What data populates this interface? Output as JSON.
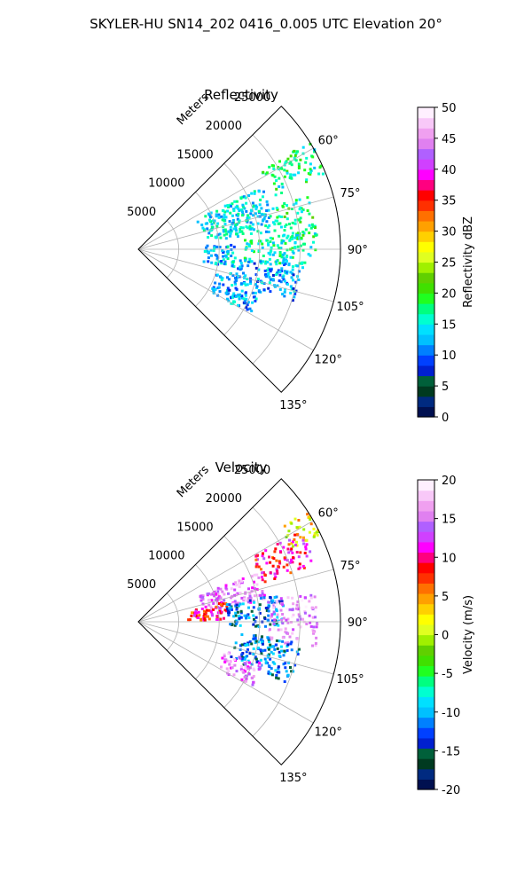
{
  "figure_title": "SKYLER-HU  SN14_202  0416_0.005 UTC Elevation 20°",
  "colors": {
    "reflectivity_colormap": [
      "#001050",
      "#002a80",
      "#003a20",
      "#00603a",
      "#0020d0",
      "#0040ff",
      "#0080ff",
      "#00c0ff",
      "#00e0ff",
      "#00ffd0",
      "#00ff80",
      "#20ff20",
      "#40e000",
      "#60d000",
      "#a0f000",
      "#e0ff20",
      "#ffff00",
      "#ffd000",
      "#ffa000",
      "#ff7000",
      "#ff3000",
      "#ff0000",
      "#ff0080",
      "#ff00ff",
      "#d040ff",
      "#b060ff",
      "#e080f0",
      "#f0a0f0",
      "#f8c8f8",
      "#fff0ff"
    ],
    "velocity_colormap": [
      "#001050",
      "#002a80",
      "#003a20",
      "#00603a",
      "#0020d0",
      "#0040ff",
      "#0080ff",
      "#00c0ff",
      "#00e0ff",
      "#00ffd0",
      "#00ff80",
      "#20ff20",
      "#40e000",
      "#60d000",
      "#a0f000",
      "#e0ff20",
      "#ffff00",
      "#ffd000",
      "#ffa000",
      "#ff7000",
      "#ff3000",
      "#ff0000",
      "#ff0080",
      "#ff00ff",
      "#d040ff",
      "#b060ff",
      "#e080f0",
      "#f0a0f0",
      "#f8c8f8",
      "#fff0ff"
    ]
  },
  "chart_data": [
    {
      "type": "heatmap",
      "projection": "polar-sector",
      "title": "Reflectivity",
      "radial_label": "Meters",
      "radial_ticks": [
        5000,
        10000,
        15000,
        20000,
        25000
      ],
      "radial_range": [
        0,
        25000
      ],
      "angle_ticks_deg": [
        60,
        75,
        90,
        105,
        120,
        135
      ],
      "angle_tick_labels": [
        "60°",
        "75°",
        "90°",
        "105°",
        "120°",
        "135°"
      ],
      "angle_range_deg": [
        45,
        135
      ],
      "grid": true,
      "colorbar": {
        "label": "Reflectivity dBZ",
        "ticks": [
          0,
          5,
          10,
          15,
          20,
          25,
          30,
          35,
          40,
          45,
          50
        ],
        "range": [
          0,
          50
        ]
      },
      "echo_regions": [
        {
          "azimuth_range_deg": [
            57,
            68
          ],
          "range_m": [
            18000,
            25000
          ],
          "value": 17
        },
        {
          "azimuth_range_deg": [
            62,
            82
          ],
          "range_m": [
            8000,
            17000
          ],
          "value": 14
        },
        {
          "azimuth_range_deg": [
            72,
            86
          ],
          "range_m": [
            17000,
            22000
          ],
          "value": 18
        },
        {
          "azimuth_range_deg": [
            84,
            96
          ],
          "range_m": [
            13000,
            22000
          ],
          "value": 16
        },
        {
          "azimuth_range_deg": [
            95,
            108
          ],
          "range_m": [
            12000,
            20000
          ],
          "value": 12
        },
        {
          "azimuth_range_deg": [
            104,
            120
          ],
          "range_m": [
            10000,
            16000
          ],
          "value": 12
        },
        {
          "azimuth_range_deg": [
            86,
            100
          ],
          "range_m": [
            8000,
            12000
          ],
          "value": 13
        }
      ]
    },
    {
      "type": "heatmap",
      "projection": "polar-sector",
      "title": "Velocity",
      "radial_label": "Meters",
      "radial_ticks": [
        5000,
        10000,
        15000,
        20000,
        25000
      ],
      "radial_range": [
        0,
        25000
      ],
      "angle_ticks_deg": [
        60,
        75,
        90,
        105,
        120,
        135
      ],
      "angle_tick_labels": [
        "60°",
        "75°",
        "90°",
        "105°",
        "120°",
        "135°"
      ],
      "angle_range_deg": [
        45,
        135
      ],
      "grid": true,
      "colorbar": {
        "label": "Velocity (m/s)",
        "ticks": [
          -20,
          -15,
          -10,
          -5,
          0,
          5,
          10,
          15,
          20
        ],
        "range": [
          -20,
          20
        ]
      },
      "echo_regions": [
        {
          "azimuth_range_deg": [
            56,
            64
          ],
          "range_m": [
            21000,
            25000
          ],
          "value": 2
        },
        {
          "azimuth_range_deg": [
            60,
            72
          ],
          "range_m": [
            16000,
            23000
          ],
          "value": 10
        },
        {
          "azimuth_range_deg": [
            66,
            80
          ],
          "range_m": [
            8000,
            16000
          ],
          "value": 15
        },
        {
          "azimuth_range_deg": [
            76,
            88
          ],
          "range_m": [
            6000,
            11000
          ],
          "value": 9
        },
        {
          "azimuth_range_deg": [
            78,
            92
          ],
          "range_m": [
            11000,
            18000
          ],
          "value": -12
        },
        {
          "azimuth_range_deg": [
            80,
            98
          ],
          "range_m": [
            16000,
            22000
          ],
          "value": 16
        },
        {
          "azimuth_range_deg": [
            96,
            112
          ],
          "range_m": [
            12000,
            20000
          ],
          "value": -12
        },
        {
          "azimuth_range_deg": [
            108,
            120
          ],
          "range_m": [
            11000,
            16000
          ],
          "value": 15
        }
      ]
    }
  ]
}
